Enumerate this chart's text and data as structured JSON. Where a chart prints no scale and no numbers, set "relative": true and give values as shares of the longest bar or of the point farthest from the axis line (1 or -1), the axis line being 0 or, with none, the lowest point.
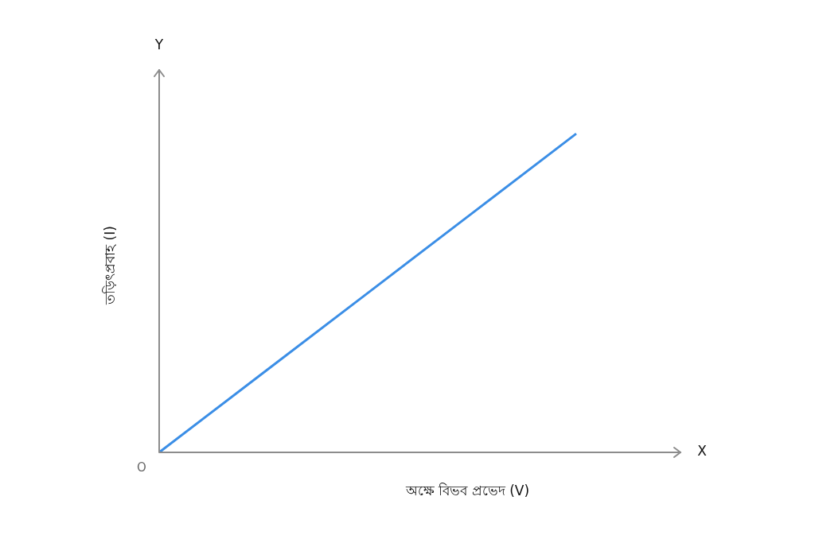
{
  "chart_data": {
    "type": "line",
    "relative": true,
    "xlabel": "অক্ষে বিভব প্রভেদ (V)",
    "ylabel": "তড়িৎপ্রবাহ (I)",
    "annotations": [
      "X",
      "Y",
      "O"
    ],
    "categories": [
      null,
      null,
      null,
      null,
      null,
      null
    ],
    "series": [
      {
        "color": "#3b8ee6",
        "values": [
          0,
          0.25,
          0.5,
          0.75,
          1,
          null
        ]
      }
    ],
    "legend": false,
    "marker": "none",
    "line_style": "solid"
  }
}
